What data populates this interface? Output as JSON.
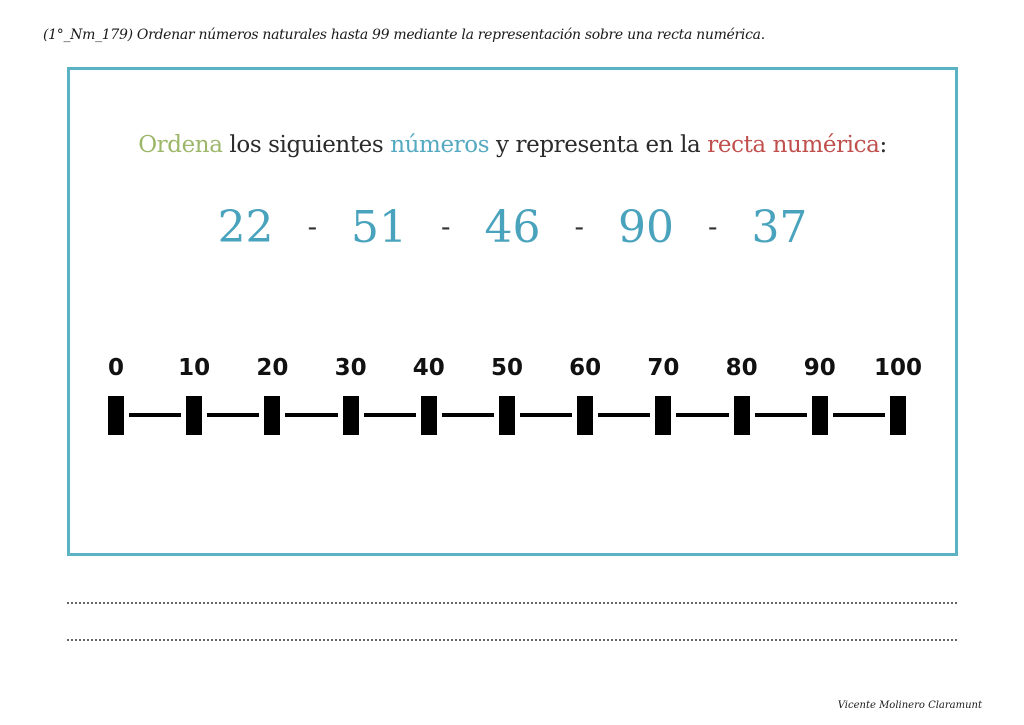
{
  "header": {
    "title": "(1°_Nm_179) Ordenar números naturales hasta 99 mediante la representación sobre una recta numérica."
  },
  "card": {
    "instruction": {
      "part1": "Ordena",
      "part2": " los siguientes ",
      "part3": "números",
      "part4": " y representa en la ",
      "part5": "recta numérica",
      "part6": ":"
    },
    "numbers": [
      "22",
      "51",
      "46",
      "90",
      "37"
    ],
    "separator": "-",
    "number_line": {
      "labels": [
        "0",
        "10",
        "20",
        "30",
        "40",
        "50",
        "60",
        "70",
        "80",
        "90",
        "100"
      ]
    }
  },
  "answer_lines": 2,
  "footer": {
    "author": "Vicente Molinero Claramunt"
  },
  "colors": {
    "border": "#5ab2c2",
    "green": "#9db76a",
    "blue": "#55a9c0",
    "red": "#c0504d",
    "numbers": "#4aa3bd"
  }
}
